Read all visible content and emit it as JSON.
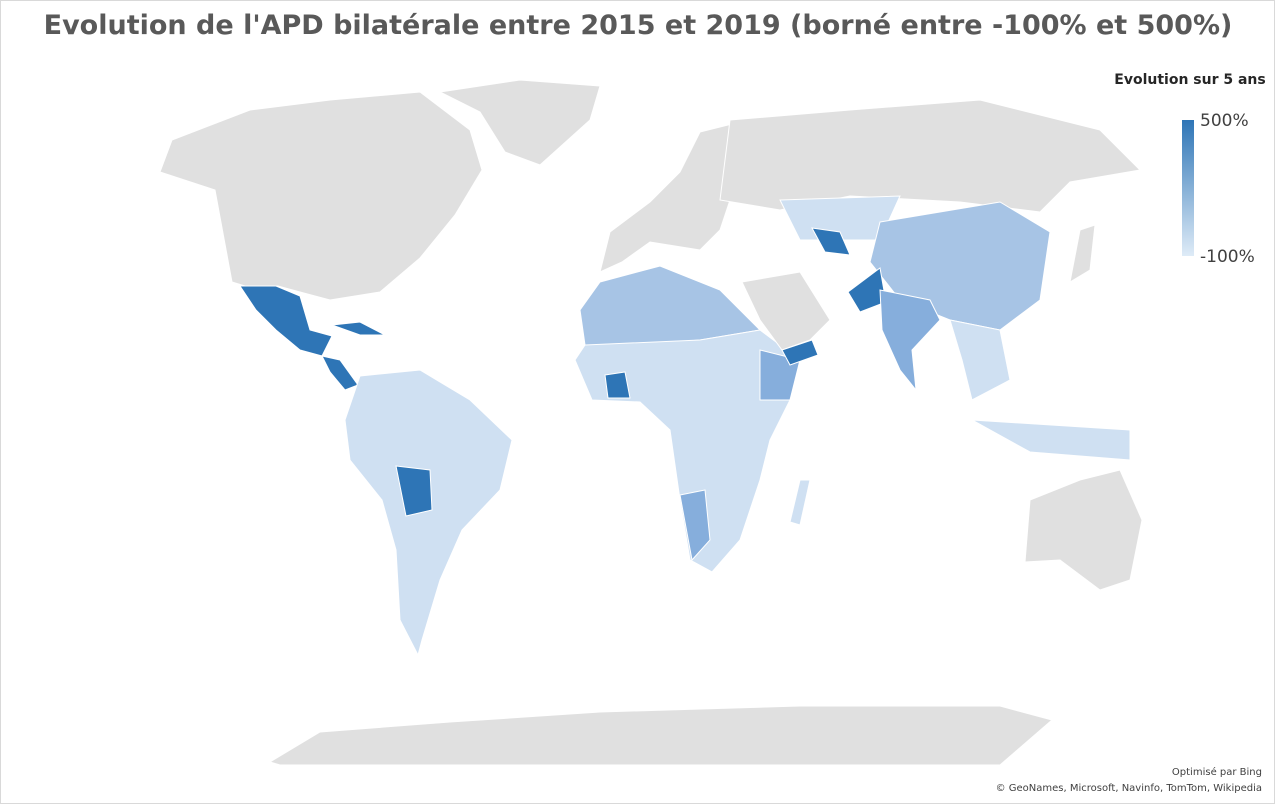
{
  "title": "Evolution de l'APD bilatérale entre 2015 et 2019 (borné entre -100% et 500%)",
  "legend": {
    "title": "Evolution sur 5 ans",
    "max": {
      "value": 500,
      "label": "500%"
    },
    "min": {
      "value": -100,
      "label": "-100%"
    },
    "colors": [
      "#2e75b6",
      "#deebf7"
    ]
  },
  "footer": {
    "credit": "Optimisé par Bing",
    "sources": "© GeoNames, Microsoft, Navinfo, TomTom, Wikipedia"
  }
}
